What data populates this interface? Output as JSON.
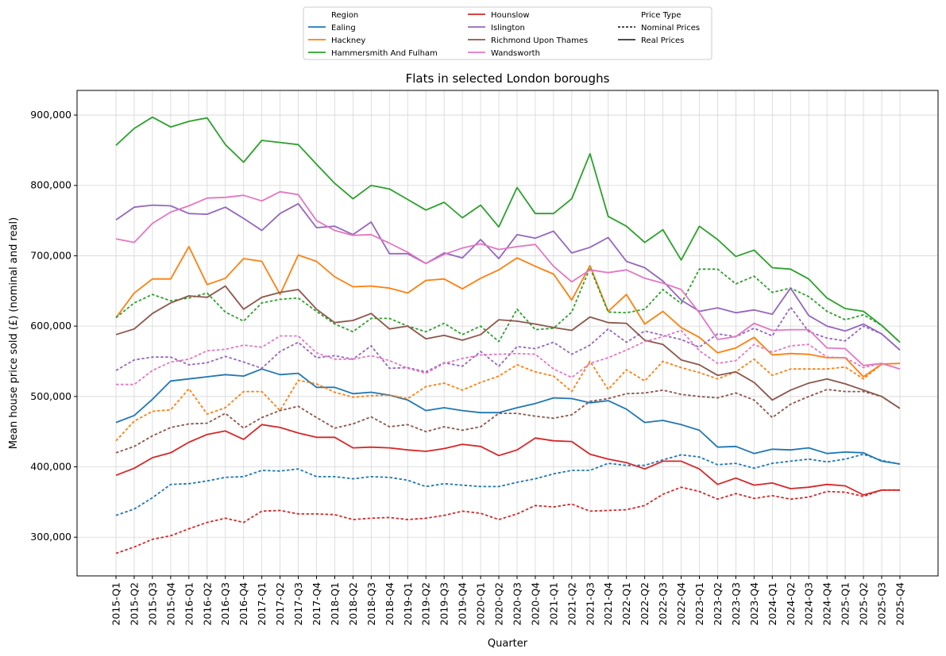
{
  "chart_data": {
    "type": "line",
    "title": "Flats in selected London boroughs",
    "xlabel": "Quarter",
    "ylabel": "Mean house price sold (£) (nominal and real)",
    "ylim": [
      245000,
      935000
    ],
    "yticks": [
      300000,
      400000,
      500000,
      600000,
      700000,
      800000,
      900000
    ],
    "ytick_labels": [
      "300,000",
      "400,000",
      "500,000",
      "600,000",
      "700,000",
      "800,000",
      "900,000"
    ],
    "grid": true,
    "legend_position": "top-center, outside plot",
    "legend": {
      "region_title": "Region",
      "price_title": "Price Type",
      "price_types": [
        {
          "name": "Nominal Prices",
          "style": "dashed"
        },
        {
          "name": "Real Prices",
          "style": "solid"
        }
      ]
    },
    "categories": [
      "2015-Q1",
      "2015-Q2",
      "2015-Q3",
      "2015-Q4",
      "2016-Q1",
      "2016-Q2",
      "2016-Q3",
      "2016-Q4",
      "2017-Q1",
      "2017-Q2",
      "2017-Q3",
      "2017-Q4",
      "2018-Q1",
      "2018-Q2",
      "2018-Q3",
      "2018-Q4",
      "2019-Q1",
      "2019-Q2",
      "2019-Q3",
      "2019-Q4",
      "2020-Q1",
      "2020-Q2",
      "2020-Q3",
      "2020-Q4",
      "2021-Q1",
      "2021-Q2",
      "2021-Q3",
      "2021-Q4",
      "2022-Q1",
      "2022-Q2",
      "2022-Q3",
      "2022-Q4",
      "2023-Q1",
      "2023-Q2",
      "2023-Q3",
      "2023-Q4",
      "2024-Q1",
      "2024-Q2",
      "2024-Q3",
      "2024-Q4",
      "2025-Q1",
      "2025-Q2",
      "2025-Q3",
      "2025-Q4"
    ],
    "series": [
      {
        "name": "Ealing",
        "color": "#1f77b4",
        "real": [
          463000,
          473000,
          496000,
          522000,
          525000,
          528000,
          531000,
          529000,
          539000,
          531000,
          533000,
          513000,
          513000,
          504000,
          506000,
          502000,
          495000,
          480000,
          484000,
          480000,
          477000,
          477000,
          484000,
          490000,
          498000,
          497000,
          491000,
          494000,
          482000,
          463000,
          466000,
          460000,
          452000,
          428000,
          429000,
          419000,
          425000,
          424000,
          427000,
          419000,
          421000,
          420000,
          408000,
          404000
        ],
        "nominal": [
          331000,
          340000,
          356000,
          375000,
          376000,
          380000,
          385000,
          386000,
          395000,
          394000,
          397000,
          386000,
          386000,
          383000,
          386000,
          385000,
          381000,
          372000,
          376000,
          374000,
          372000,
          372000,
          378000,
          383000,
          390000,
          395000,
          395000,
          405000,
          402000,
          402000,
          410000,
          417000,
          414000,
          403000,
          405000,
          398000,
          405000,
          408000,
          411000,
          407000,
          411000,
          418000,
          409000,
          404000
        ]
      },
      {
        "name": "Hackney",
        "color": "#ff7f0e",
        "real": [
          612000,
          647000,
          667000,
          667000,
          713000,
          659000,
          668000,
          696000,
          692000,
          645000,
          701000,
          692000,
          670000,
          656000,
          657000,
          654000,
          647000,
          665000,
          667000,
          653000,
          668000,
          680000,
          697000,
          685000,
          674000,
          637000,
          686000,
          621000,
          645000,
          603000,
          621000,
          598000,
          584000,
          562000,
          569000,
          584000,
          559000,
          561000,
          560000,
          555000,
          555000,
          528000,
          546000,
          547000
        ],
        "nominal": [
          437000,
          465000,
          479000,
          481000,
          511000,
          475000,
          484000,
          507000,
          507000,
          480000,
          523000,
          518000,
          506000,
          499000,
          501000,
          502000,
          497000,
          514000,
          519000,
          509000,
          520000,
          529000,
          545000,
          535000,
          529000,
          507000,
          550000,
          510000,
          538000,
          522000,
          550000,
          541000,
          534000,
          525000,
          535000,
          553000,
          530000,
          539000,
          539000,
          539000,
          542000,
          525000,
          546000,
          547000
        ]
      },
      {
        "name": "Hammersmith And Fulham",
        "color": "#2ca02c",
        "real": [
          857000,
          881000,
          897000,
          883000,
          891000,
          896000,
          858000,
          833000,
          864000,
          861000,
          858000,
          830000,
          803000,
          781000,
          800000,
          795000,
          780000,
          765000,
          776000,
          754000,
          772000,
          741000,
          797000,
          760000,
          760000,
          781000,
          845000,
          756000,
          742000,
          719000,
          737000,
          694000,
          742000,
          723000,
          699000,
          708000,
          683000,
          681000,
          667000,
          640000,
          625000,
          621000,
          601000,
          577000
        ],
        "nominal": [
          612000,
          633000,
          645000,
          636000,
          640000,
          647000,
          620000,
          607000,
          633000,
          638000,
          640000,
          621000,
          603000,
          592000,
          611000,
          611000,
          600000,
          592000,
          604000,
          588000,
          600000,
          578000,
          624000,
          595000,
          597000,
          620000,
          683000,
          620000,
          619000,
          624000,
          652000,
          632000,
          681000,
          681000,
          660000,
          671000,
          648000,
          654000,
          642000,
          621000,
          609000,
          616000,
          601000,
          577000
        ]
      },
      {
        "name": "Hounslow",
        "color": "#d62728",
        "real": [
          388000,
          398000,
          413000,
          420000,
          435000,
          446000,
          451000,
          439000,
          460000,
          456000,
          448000,
          442000,
          442000,
          427000,
          428000,
          427000,
          424000,
          422000,
          426000,
          432000,
          429000,
          416000,
          424000,
          441000,
          437000,
          436000,
          418000,
          411000,
          406000,
          397000,
          408000,
          408000,
          397000,
          375000,
          384000,
          374000,
          377000,
          369000,
          371000,
          375000,
          373000,
          360000,
          367000,
          367000
        ],
        "nominal": [
          277000,
          286000,
          297000,
          302000,
          312000,
          321000,
          327000,
          321000,
          337000,
          338000,
          333000,
          333000,
          332000,
          325000,
          327000,
          328000,
          325000,
          327000,
          331000,
          337000,
          334000,
          325000,
          333000,
          345000,
          343000,
          347000,
          337000,
          338000,
          339000,
          345000,
          361000,
          371000,
          365000,
          354000,
          362000,
          355000,
          359000,
          354000,
          357000,
          365000,
          364000,
          358000,
          367000,
          367000
        ]
      },
      {
        "name": "Islington",
        "color": "#9467bd",
        "real": [
          751000,
          769000,
          772000,
          771000,
          760000,
          759000,
          769000,
          753000,
          736000,
          760000,
          774000,
          740000,
          742000,
          730000,
          748000,
          703000,
          703000,
          689000,
          704000,
          697000,
          723000,
          696000,
          730000,
          725000,
          735000,
          704000,
          712000,
          726000,
          692000,
          683000,
          664000,
          637000,
          621000,
          626000,
          619000,
          623000,
          617000,
          654000,
          615000,
          600000,
          593000,
          603000,
          589000,
          566000
        ],
        "nominal": [
          537000,
          552000,
          556000,
          556000,
          545000,
          548000,
          557000,
          549000,
          540000,
          564000,
          577000,
          555000,
          558000,
          553000,
          572000,
          540000,
          541000,
          535000,
          548000,
          543000,
          564000,
          543000,
          571000,
          568000,
          577000,
          560000,
          573000,
          596000,
          577000,
          593000,
          587000,
          581000,
          570000,
          589000,
          585000,
          597000,
          586000,
          627000,
          592000,
          583000,
          579000,
          600000,
          589000,
          566000
        ]
      },
      {
        "name": "Richmond Upon Thames",
        "color": "#8c564b",
        "real": [
          588000,
          596000,
          618000,
          633000,
          643000,
          641000,
          657000,
          624000,
          641000,
          648000,
          652000,
          624000,
          605000,
          608000,
          618000,
          596000,
          600000,
          582000,
          587000,
          580000,
          588000,
          609000,
          607000,
          603000,
          598000,
          594000,
          613000,
          605000,
          604000,
          580000,
          574000,
          552000,
          545000,
          530000,
          535000,
          520000,
          495000,
          509000,
          519000,
          525000,
          518000,
          509000,
          500000,
          483000
        ],
        "nominal": [
          420000,
          429000,
          444000,
          456000,
          461000,
          462000,
          476000,
          455000,
          470000,
          480000,
          486000,
          470000,
          455000,
          461000,
          471000,
          457000,
          460000,
          450000,
          457000,
          452000,
          457000,
          476000,
          476000,
          472000,
          469000,
          474000,
          493000,
          497000,
          504000,
          505000,
          509000,
          503000,
          500000,
          498000,
          505000,
          495000,
          470000,
          489000,
          500000,
          510000,
          507000,
          507000,
          500000,
          483000
        ]
      },
      {
        "name": "Wandsworth",
        "color": "#e377c2",
        "real": [
          724000,
          719000,
          746000,
          762000,
          771000,
          782000,
          783000,
          786000,
          778000,
          791000,
          787000,
          750000,
          736000,
          729000,
          730000,
          718000,
          705000,
          689000,
          702000,
          711000,
          717000,
          709000,
          713000,
          716000,
          685000,
          663000,
          680000,
          676000,
          680000,
          668000,
          661000,
          652000,
          619000,
          581000,
          585000,
          604000,
          594000,
          595000,
          595000,
          569000,
          568000,
          544000,
          547000,
          539000
        ],
        "nominal": [
          517000,
          517000,
          537000,
          549000,
          553000,
          565000,
          567000,
          573000,
          570000,
          586000,
          586000,
          562000,
          553000,
          553000,
          558000,
          551000,
          540000,
          533000,
          547000,
          554000,
          559000,
          560000,
          561000,
          560000,
          539000,
          527000,
          547000,
          555000,
          566000,
          578000,
          585000,
          594000,
          565000,
          547000,
          551000,
          574000,
          563000,
          572000,
          574000,
          556000,
          555000,
          541000,
          547000,
          539000
        ]
      }
    ]
  }
}
